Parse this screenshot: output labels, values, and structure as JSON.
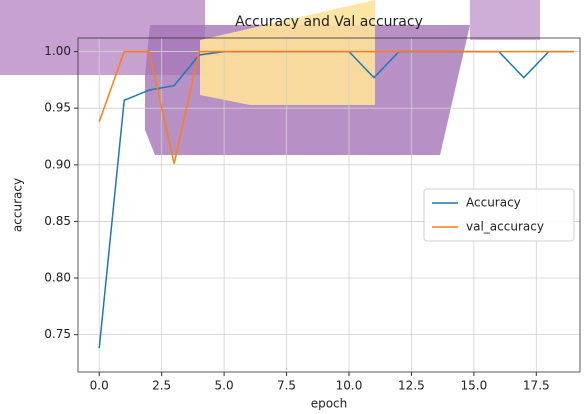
{
  "chart_data": {
    "type": "line",
    "title": "Accuracy and Val accuracy",
    "x_label": "epoch",
    "y_label": "accuracy",
    "x": [
      0,
      1,
      2,
      3,
      4,
      5,
      6,
      7,
      8,
      9,
      10,
      11,
      12,
      13,
      14,
      15,
      16,
      17,
      18,
      19
    ],
    "series": [
      {
        "name": "Accuracy",
        "color": "#1f77b4",
        "values": [
          0.738,
          0.957,
          0.966,
          0.97,
          0.997,
          1.0,
          1.0,
          1.0,
          1.0,
          1.0,
          1.0,
          0.977,
          1.0,
          1.0,
          1.0,
          1.0,
          1.0,
          0.977,
          1.0,
          1.0
        ]
      },
      {
        "name": "val_accuracy",
        "color": "#ff7f0e",
        "values": [
          0.938,
          1.0,
          1.0,
          0.901,
          1.0,
          1.0,
          1.0,
          1.0,
          1.0,
          1.0,
          1.0,
          1.0,
          1.0,
          1.0,
          1.0,
          1.0,
          1.0,
          1.0,
          1.0,
          1.0
        ]
      }
    ],
    "xlim": [
      -0.85,
      19.25
    ],
    "xticks": [
      {
        "value": 0,
        "label": "0.0"
      },
      2.5,
      {
        "value": 5,
        "label": "5.0"
      },
      7.5,
      {
        "value": 10,
        "label": "10.0"
      },
      12.5,
      {
        "value": 15,
        "label": "15.0"
      },
      17.5
    ],
    "ylim": [
      0.717,
      1.012
    ],
    "yticks": [
      0.75,
      {
        "value": 0.8,
        "label": "0.80"
      },
      0.85,
      {
        "value": 0.9,
        "label": "0.90"
      },
      0.95,
      {
        "value": 1.0,
        "label": "1.00"
      }
    ],
    "grid": true,
    "legend": "center right"
  }
}
